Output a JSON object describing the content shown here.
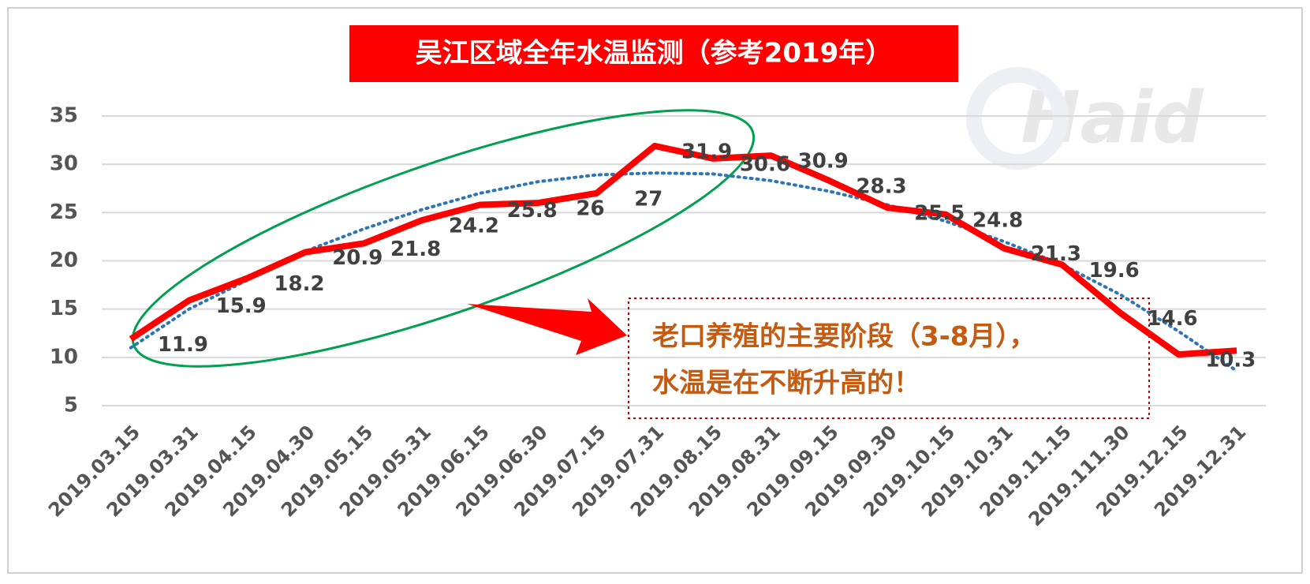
{
  "chart_data": {
    "type": "line",
    "title": "吴江区域全年水温监测（参考2019年）",
    "categories": [
      "2019.03.15",
      "2019.03.31",
      "2019.04.15",
      "2019.04.30",
      "2019.05.15",
      "2019.05.31",
      "2019.06.15",
      "2019.06.30",
      "2019.07.15",
      "2019.07.31",
      "2019.08.15",
      "2019.08.31",
      "2019.09.15",
      "2019.09.30",
      "2019.10.15",
      "2019.10.31",
      "2019.11.15",
      "2019.111.30",
      "2019.12.15",
      "2019.12.31"
    ],
    "series": [
      {
        "color": "#ff0000",
        "style": "solid",
        "values": [
          11.9,
          15.9,
          18.2,
          20.9,
          21.8,
          24.2,
          25.8,
          26,
          27,
          31.9,
          30.6,
          30.9,
          28.3,
          25.5,
          24.8,
          21.3,
          19.6,
          14.6,
          10.3,
          10.7
        ],
        "value_labels": [
          "11.9",
          "15.9",
          "18.2",
          "20.9",
          "21.8",
          "24.2",
          "25.8",
          "26",
          "27",
          "31.9",
          "30.6",
          "30.9",
          "28.3",
          "25.5",
          "24.8",
          "21.3",
          "19.6",
          "14.6",
          "10.3",
          null
        ]
      },
      {
        "color": "#2e75b6",
        "style": "dotted",
        "values": [
          11,
          15,
          18,
          21,
          23.3,
          25.3,
          27,
          28.2,
          28.9,
          29.1,
          29,
          28.3,
          27.2,
          25.8,
          24.1,
          22,
          19.6,
          16.5,
          12.7,
          8.6
        ]
      }
    ],
    "ylim": [
      5,
      35
    ],
    "yticks": [
      5,
      10,
      15,
      20,
      25,
      30,
      35
    ],
    "grid": true,
    "annotation": [
      "老口养殖的主要阶段（3-8月），",
      "水温是在不断升高的！"
    ],
    "watermark": "Haid"
  }
}
